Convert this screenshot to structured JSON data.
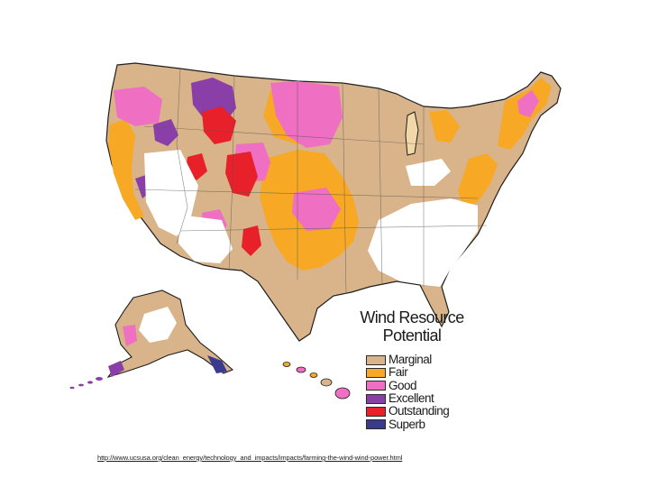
{
  "legend": {
    "title_line1": "Wind Resource",
    "title_line2": "Potential",
    "items": [
      {
        "label": "Marginal",
        "color": "#d9b48a"
      },
      {
        "label": "Fair",
        "color": "#f7a824"
      },
      {
        "label": "Good",
        "color": "#ef6fc3"
      },
      {
        "label": "Excellent",
        "color": "#8a3fa8"
      },
      {
        "label": "Outstanding",
        "color": "#e8202a"
      },
      {
        "label": "Superb",
        "color": "#3a3a8e"
      }
    ]
  },
  "source_url": "http://www.ucsusa.org/clean_energy/technology_and_impacts/impacts/farming-the-wind-wind-power.html",
  "colors": {
    "outline": "#1e1e1e",
    "lake": "#f2d8a8"
  }
}
